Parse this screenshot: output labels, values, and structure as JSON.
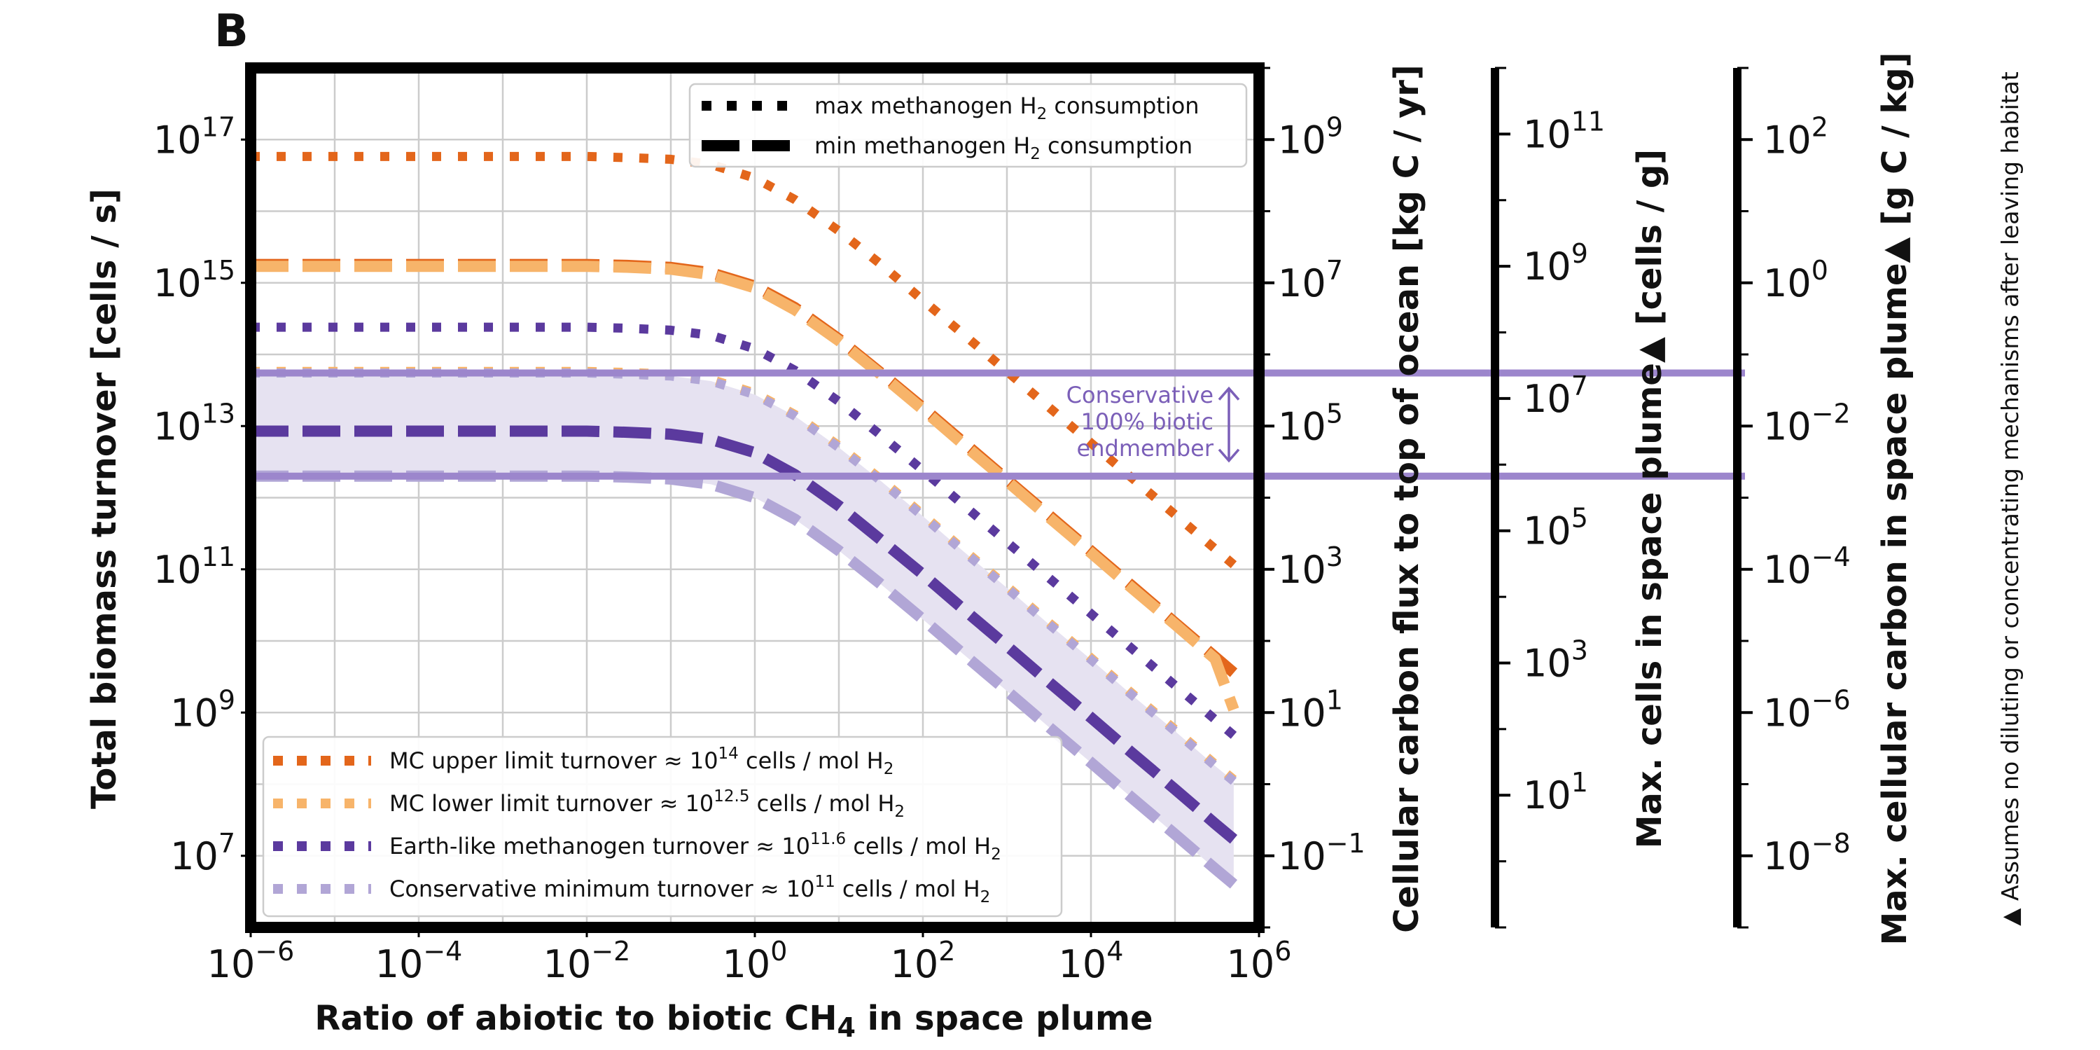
{
  "panel_label": "B",
  "chart_data": {
    "type": "line",
    "x_axis": {
      "label": "Ratio of abiotic to biotic CH",
      "label_sub": "4",
      "label_suffix": " in space plume",
      "scale": "log",
      "range": [
        1e-06,
        1000000.0
      ],
      "tick_labels": [
        {
          "value": 1e-06,
          "base": "10",
          "exp": "−6"
        },
        {
          "value": 0.0001,
          "base": "10",
          "exp": "−4"
        },
        {
          "value": 0.01,
          "base": "10",
          "exp": "−2"
        },
        {
          "value": 1,
          "base": "10",
          "exp": "0"
        },
        {
          "value": 100.0,
          "base": "10",
          "exp": "2"
        },
        {
          "value": 10000.0,
          "base": "10",
          "exp": "4"
        },
        {
          "value": 1000000.0,
          "base": "10",
          "exp": "6"
        }
      ]
    },
    "y_axis": {
      "label": "Total biomass turnover [cells / s]",
      "scale": "log",
      "range": [
        1000000.0,
        1e+18
      ],
      "tick_labels": [
        {
          "value": 10000000.0,
          "base": "10",
          "exp": "7"
        },
        {
          "value": 1000000000.0,
          "base": "10",
          "exp": "9"
        },
        {
          "value": 100000000000.0,
          "base": "10",
          "exp": "11"
        },
        {
          "value": 10000000000000.0,
          "base": "10",
          "exp": "13"
        },
        {
          "value": 1000000000000000.0,
          "base": "10",
          "exp": "15"
        },
        {
          "value": 1e+17,
          "base": "10",
          "exp": "17"
        }
      ]
    },
    "secondary_axes": [
      {
        "label": "Cellular carbon flux to top of ocean [kg C / yr]",
        "scale": "log",
        "range": [
          0.01,
          10000000000.0
        ],
        "tick_labels": [
          {
            "value": 0.1,
            "base": "10",
            "exp": "−1"
          },
          {
            "value": 10,
            "base": "10",
            "exp": "1"
          },
          {
            "value": 1000,
            "base": "10",
            "exp": "3"
          },
          {
            "value": 100000.0,
            "base": "10",
            "exp": "5"
          },
          {
            "value": 10000000.0,
            "base": "10",
            "exp": "7"
          },
          {
            "value": 1000000000.0,
            "base": "10",
            "exp": "9"
          }
        ]
      },
      {
        "label": "Max. cells in space plume▲ [cells / g]",
        "scale": "log",
        "range": [
          0.1,
          1000000000000.0
        ],
        "tick_labels": [
          {
            "value": 10,
            "base": "10",
            "exp": "1"
          },
          {
            "value": 1000,
            "base": "10",
            "exp": "3"
          },
          {
            "value": 100000.0,
            "base": "10",
            "exp": "5"
          },
          {
            "value": 10000000.0,
            "base": "10",
            "exp": "7"
          },
          {
            "value": 1000000000.0,
            "base": "10",
            "exp": "9"
          },
          {
            "value": 100000000000.0,
            "base": "10",
            "exp": "11"
          }
        ]
      },
      {
        "label": "Max. cellular carbon in space plume▲ [g C / kg]",
        "scale": "log",
        "range": [
          1e-09,
          1000.0
        ],
        "tick_labels": [
          {
            "value": 1e-08,
            "base": "10",
            "exp": "−8"
          },
          {
            "value": 1e-06,
            "base": "10",
            "exp": "−6"
          },
          {
            "value": 0.0001,
            "base": "10",
            "exp": "−4"
          },
          {
            "value": 0.01,
            "base": "10",
            "exp": "−2"
          },
          {
            "value": 1,
            "base": "10",
            "exp": "0"
          },
          {
            "value": 100,
            "base": "10",
            "exp": "2"
          }
        ]
      }
    ],
    "grid": true,
    "x": [
      1e-06,
      1e-05,
      0.0001,
      0.001,
      0.01,
      0.03,
      0.1,
      0.3,
      1,
      3,
      10,
      30,
      100,
      300,
      1000,
      3000,
      10000.0,
      30000.0,
      100000.0,
      300000.0,
      500000.0
    ],
    "series": [
      {
        "name": "MC upper limit turnover ≈ 10^14 cells / mol H2 — max methanogen H2 consumption",
        "color": "#e3661b",
        "style": "dotted",
        "values": [
          5.8e+16,
          5.8e+16,
          5.8e+16,
          5.8e+16,
          5.8e+16,
          5.6e+16,
          5.3e+16,
          4.5e+16,
          2.9e+16,
          1.45e+16,
          5300000000000000.0,
          1900000000000000.0,
          570000000000000.0,
          193000000000000.0,
          58000000000000.0,
          19300000000000.0,
          5800000000000.0,
          1930000000000.0,
          580000000000.0,
          193000000000.0,
          116000000000.0
        ]
      },
      {
        "name": "MC upper limit turnover ≈ 10^14 cells / mol H2 — min methanogen H2 consumption",
        "color": "#e3661b",
        "style": "dashed",
        "values": [
          1800000000000000.0,
          1800000000000000.0,
          1800000000000000.0,
          1800000000000000.0,
          1800000000000000.0,
          1750000000000000.0,
          1640000000000000.0,
          1380000000000000.0,
          900000000000000.0,
          450000000000000.0,
          164000000000000.0,
          58000000000000.0,
          18000000000000.0,
          6000000000000.0,
          1800000000000.0,
          600000000000.0,
          180000000000.0,
          60000000000.0,
          18000000000.0,
          6000000000.0,
          3600000000.0
        ]
      },
      {
        "name": "MC lower limit turnover ≈ 10^12.5 cells / mol H2 — min methanogen H2 consumption",
        "color": "#f7b46a",
        "style": "dashed",
        "values": [
          1700000000000000.0,
          1700000000000000.0,
          1700000000000000.0,
          1700000000000000.0,
          1700000000000000.0,
          1650000000000000.0,
          1550000000000000.0,
          1300000000000000.0,
          850000000000000.0,
          420000000000000.0,
          155000000000000.0,
          55000000000000.0,
          17000000000000.0,
          5600000000000.0,
          1700000000000.0,
          560000000000.0,
          170000000000.0,
          56000000000.0,
          17000000000.0,
          5600000000.0,
          1100000000.0
        ]
      },
      {
        "name": "MC lower limit turnover ≈ 10^12.5 cells / mol H2 — max methanogen H2 consumption",
        "color": "#f7b46a",
        "style": "dotted",
        "values": [
          58000000000000.0,
          58000000000000.0,
          58000000000000.0,
          58000000000000.0,
          58000000000000.0,
          56000000000000.0,
          53000000000000.0,
          45000000000000.0,
          29000000000000.0,
          14500000000000.0,
          5300000000000.0,
          1900000000000.0,
          580000000000.0,
          190000000000.0,
          58000000000.0,
          19000000000.0,
          5800000000.0,
          1900000000.0,
          580000000.0,
          190000000.0,
          116000000.0
        ]
      },
      {
        "name": "Earth-like methanogen turnover ≈ 10^11.6 cells / mol H2 — max methanogen H2 consumption",
        "color": "#5b3a9e",
        "style": "dotted",
        "values": [
          240000000000000.0,
          240000000000000.0,
          240000000000000.0,
          240000000000000.0,
          240000000000000.0,
          232000000000000.0,
          218000000000000.0,
          185000000000000.0,
          120000000000000.0,
          60000000000000.0,
          22000000000000.0,
          7800000000000.0,
          2400000000000.0,
          800000000000.0,
          240000000000.0,
          80000000000.0,
          24000000000.0,
          8000000000.0,
          2400000000.0,
          800000000.0,
          480000000.0
        ]
      },
      {
        "name": "Earth-like methanogen turnover ≈ 10^11.6 cells / mol H2 — min methanogen H2 consumption",
        "color": "#5b3a9e",
        "style": "dashed",
        "values": [
          8500000000000.0,
          8500000000000.0,
          8500000000000.0,
          8500000000000.0,
          8500000000000.0,
          8200000000000.0,
          7700000000000.0,
          6500000000000.0,
          4250000000000.0,
          2100000000000.0,
          770000000000.0,
          270000000000.0,
          85000000000.0,
          28000000000.0,
          8500000000.0,
          2800000000.0,
          850000000.0,
          280000000.0,
          85000000.0,
          28000000.0,
          17000000.0
        ]
      },
      {
        "name": "Conservative minimum turnover ≈ 10^11 cells / mol H2 — max methanogen H2 consumption",
        "color": "#b1a6d6",
        "style": "dotted",
        "values": [
          55000000000000.0,
          55000000000000.0,
          55000000000000.0,
          55000000000000.0,
          55000000000000.0,
          53000000000000.0,
          50000000000000.0,
          42500000000000.0,
          27500000000000.0,
          13800000000000.0,
          5000000000000.0,
          1800000000000.0,
          550000000000.0,
          180000000000.0,
          55000000000.0,
          18000000000.0,
          5500000000.0,
          1800000000.0,
          550000000.0,
          180000000.0,
          110000000.0
        ]
      },
      {
        "name": "Conservative minimum turnover ≈ 10^11 cells / mol H2 — min methanogen H2 consumption",
        "color": "#b1a6d6",
        "style": "dashed",
        "values": [
          2000000000000.0,
          2000000000000.0,
          2000000000000.0,
          2000000000000.0,
          2000000000000.0,
          1940000000000.0,
          1820000000000.0,
          1540000000000.0,
          1000000000000.0,
          500000000000.0,
          182000000000.0,
          65000000000.0,
          20000000000.0,
          6600000000.0,
          2000000000.0,
          660000000.0,
          200000000.0,
          66000000.0,
          20000000.0,
          6600000.0,
          4000000.0
        ]
      }
    ],
    "shaded_band": {
      "color": "#e6e2f1",
      "upper_series_index": 6,
      "lower_series_index": 7
    },
    "reference_lines": [
      {
        "value": 55000000000000.0,
        "color": "#9c86cc"
      },
      {
        "value": 2000000000000.0,
        "color": "#9c86cc"
      }
    ],
    "annotation": {
      "lines": [
        "Conservative",
        "100% biotic",
        "endmember"
      ],
      "color": "#7b5fb8",
      "arrow": "double-headed vertical"
    },
    "style_legend": {
      "placement": "top-right",
      "items": [
        {
          "style": "dotted",
          "text": "max methanogen H",
          "sub": "2",
          "suffix": " consumption"
        },
        {
          "style": "dashed",
          "text": "min methanogen H",
          "sub": "2",
          "suffix": " consumption"
        }
      ]
    },
    "color_legend": {
      "placement": "bottom-left",
      "items": [
        {
          "color": "#e3661b",
          "prefix": "MC upper limit turnover ≈ 10",
          "exp": "14",
          "suffix": " cells / mol H",
          "sub": "2"
        },
        {
          "color": "#f7b46a",
          "prefix": "MC lower limit turnover ≈ 10",
          "exp": "12.5",
          "suffix": " cells / mol H",
          "sub": "2"
        },
        {
          "color": "#5b3a9e",
          "prefix": "Earth-like methanogen turnover ≈ 10",
          "exp": "11.6",
          "suffix": " cells / mol H",
          "sub": "2"
        },
        {
          "color": "#b1a6d6",
          "prefix": "Conservative minimum turnover ≈ 10",
          "exp": "11",
          "suffix": " cells / mol H",
          "sub": "2"
        }
      ]
    },
    "footnote": "▲ Assumes no diluting or concentrating mechanisms after leaving habitat"
  }
}
